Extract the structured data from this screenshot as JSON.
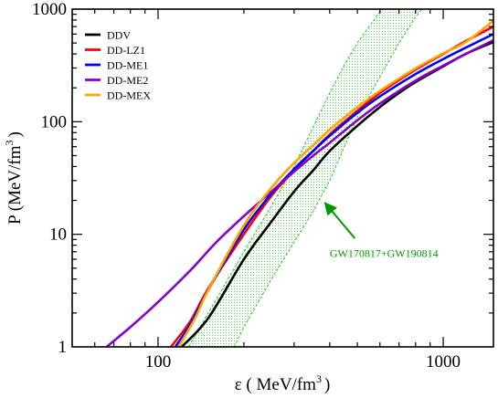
{
  "chart_data": {
    "type": "line",
    "xlabel_prefix": "ε ( MeV/fm",
    "xlabel_sup": "3",
    "xlabel_suffix": ")",
    "ylabel_prefix": "P (MeV/fm",
    "ylabel_sup": "3",
    "ylabel_suffix": ")",
    "x_scale": "log",
    "y_scale": "log",
    "xlim": [
      50,
      1500
    ],
    "ylim": [
      1,
      1000
    ],
    "x_ticks": [
      {
        "value": 100,
        "label": "100"
      },
      {
        "value": 1000,
        "label": "1000"
      }
    ],
    "y_ticks": [
      {
        "value": 1,
        "label": "1"
      },
      {
        "value": 10,
        "label": "10"
      },
      {
        "value": 100,
        "label": "100"
      },
      {
        "value": 1000,
        "label": "1000"
      }
    ],
    "legend_position": "top-left",
    "grid": false,
    "series": [
      {
        "name": "DDV",
        "color": "#000000",
        "points": [
          [
            121,
            1
          ],
          [
            150,
            1.8
          ],
          [
            200,
            6
          ],
          [
            250,
            13
          ],
          [
            300,
            24
          ],
          [
            350,
            37
          ],
          [
            400,
            55
          ],
          [
            500,
            92
          ],
          [
            600,
            135
          ],
          [
            700,
            180
          ],
          [
            800,
            225
          ],
          [
            1000,
            310
          ],
          [
            1200,
            400
          ],
          [
            1500,
            510
          ]
        ]
      },
      {
        "name": "DD-LZ1",
        "color": "#ff0000",
        "points": [
          [
            111,
            1
          ],
          [
            130,
            1.7
          ],
          [
            150,
            3.3
          ],
          [
            200,
            10
          ],
          [
            250,
            22
          ],
          [
            300,
            37
          ],
          [
            350,
            55
          ],
          [
            400,
            77
          ],
          [
            500,
            125
          ],
          [
            600,
            180
          ],
          [
            800,
            290
          ],
          [
            1000,
            400
          ],
          [
            1200,
            520
          ],
          [
            1500,
            700
          ]
        ]
      },
      {
        "name": "DD-ME1",
        "color": "#0000ff",
        "points": [
          [
            115,
            1
          ],
          [
            130,
            1.6
          ],
          [
            150,
            3.2
          ],
          [
            200,
            11
          ],
          [
            250,
            23
          ],
          [
            300,
            38
          ],
          [
            350,
            55
          ],
          [
            400,
            75
          ],
          [
            500,
            120
          ],
          [
            600,
            168
          ],
          [
            800,
            265
          ],
          [
            1000,
            360
          ],
          [
            1200,
            455
          ],
          [
            1500,
            600
          ]
        ]
      },
      {
        "name": "DD-ME2",
        "color": "#8b00c8",
        "points": [
          [
            66,
            1
          ],
          [
            80,
            1.5
          ],
          [
            100,
            2.5
          ],
          [
            130,
            4.8
          ],
          [
            160,
            8.5
          ],
          [
            200,
            14.5
          ],
          [
            250,
            24
          ],
          [
            300,
            36
          ],
          [
            350,
            50
          ],
          [
            400,
            65
          ],
          [
            500,
            103
          ],
          [
            600,
            145
          ],
          [
            800,
            232
          ],
          [
            1000,
            315
          ],
          [
            1200,
            400
          ],
          [
            1500,
            530
          ]
        ]
      },
      {
        "name": "DD-MEX",
        "color": "#ffa500",
        "points": [
          [
            118,
            1
          ],
          [
            135,
            1.8
          ],
          [
            150,
            3.2
          ],
          [
            200,
            12
          ],
          [
            250,
            26
          ],
          [
            300,
            43
          ],
          [
            350,
            62
          ],
          [
            400,
            85
          ],
          [
            500,
            135
          ],
          [
            600,
            188
          ],
          [
            800,
            298
          ],
          [
            1000,
            405
          ],
          [
            1200,
            510
          ],
          [
            1500,
            790
          ]
        ]
      }
    ],
    "band": {
      "color": "#22cc22",
      "lower": [
        [
          185,
          1
        ],
        [
          200,
          1.5
        ],
        [
          250,
          4
        ],
        [
          300,
          8.5
        ],
        [
          350,
          16
        ],
        [
          400,
          30
        ],
        [
          450,
          60
        ],
        [
          500,
          110
        ],
        [
          600,
          250
        ],
        [
          700,
          500
        ],
        [
          800,
          850
        ],
        [
          840,
          1000
        ]
      ],
      "upper": [
        [
          128,
          1
        ],
        [
          150,
          2
        ],
        [
          200,
          7
        ],
        [
          250,
          18
        ],
        [
          300,
          40
        ],
        [
          350,
          90
        ],
        [
          400,
          180
        ],
        [
          450,
          320
        ],
        [
          500,
          500
        ],
        [
          550,
          700
        ],
        [
          600,
          950
        ],
        [
          610,
          1000
        ]
      ]
    },
    "annotation": {
      "text": "GW170817+GW190814",
      "color": "#009900",
      "arrow_to": [
        385,
        19
      ],
      "arrow_from": [
        490,
        9.2
      ],
      "text_at": [
        620,
        6.3
      ]
    }
  }
}
